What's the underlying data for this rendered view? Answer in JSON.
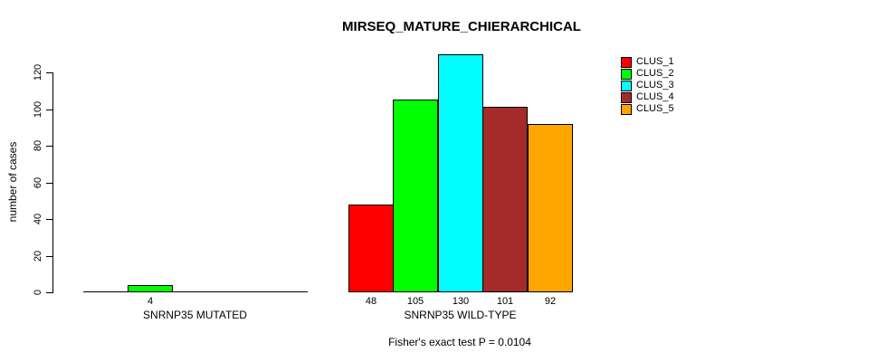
{
  "chart_data": {
    "type": "bar",
    "title": "MIRSEQ_MATURE_CHIERARCHICAL",
    "xlabel": "",
    "ylabel": "number of cases",
    "ylim": [
      0,
      130
    ],
    "yticks": [
      0,
      20,
      40,
      60,
      80,
      100,
      120
    ],
    "grid": false,
    "legend_position": "top-right",
    "series": [
      {
        "name": "CLUS_1",
        "color": "#ff0000"
      },
      {
        "name": "CLUS_2",
        "color": "#00ff00"
      },
      {
        "name": "CLUS_3",
        "color": "#00ffff"
      },
      {
        "name": "CLUS_4",
        "color": "#a52a2a"
      },
      {
        "name": "CLUS_5",
        "color": "#ffa500"
      }
    ],
    "groups": [
      {
        "label": "SNRNP35 MUTATED",
        "values": [
          0,
          4,
          0,
          0,
          0
        ]
      },
      {
        "label": "SNRNP35 WILD-TYPE",
        "values": [
          48,
          105,
          130,
          101,
          92
        ]
      }
    ],
    "value_labels": {
      "show": true,
      "hide_zero": true
    },
    "annotation": "Fisher's exact test P = 0.0104"
  }
}
